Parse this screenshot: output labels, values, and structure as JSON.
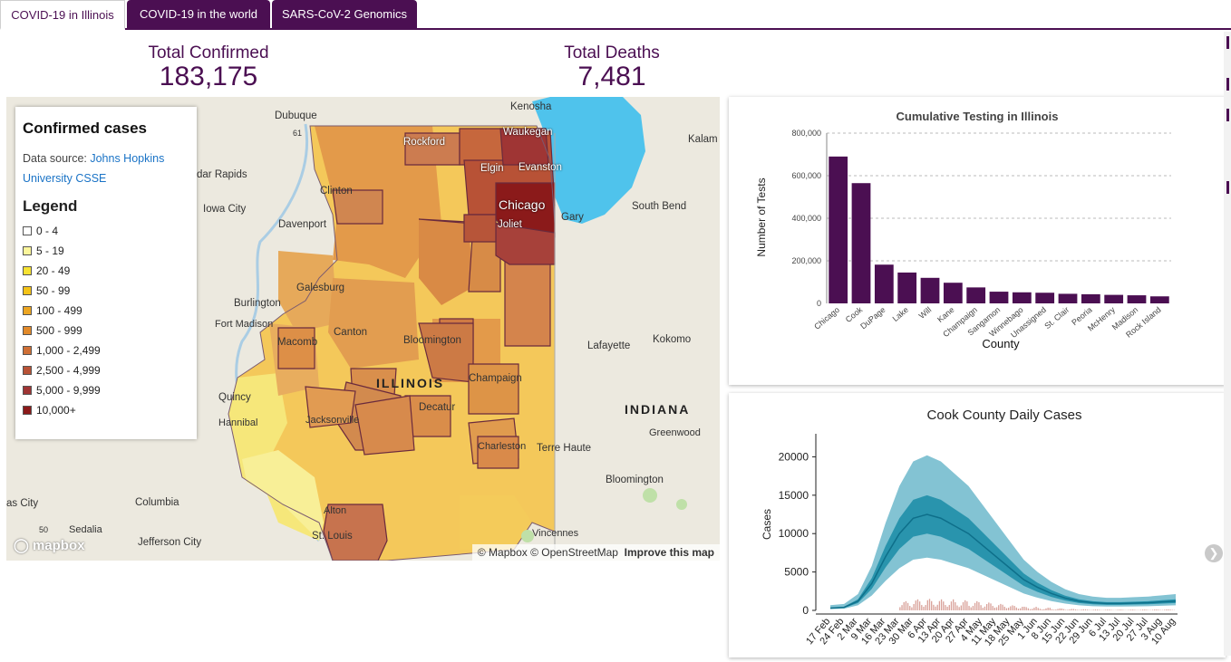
{
  "tabs": [
    {
      "label": "COVID-19 in Illinois",
      "active": true
    },
    {
      "label": "COVID-19 in the world",
      "active": false
    },
    {
      "label": "SARS-CoV-2 Genomics",
      "active": false
    }
  ],
  "totals": {
    "confirmed_label": "Total Confirmed",
    "confirmed_value": "183,175",
    "deaths_label": "Total Deaths",
    "deaths_value": "7,481"
  },
  "map": {
    "legend_title": "Confirmed cases",
    "source_prefix": "Data source: ",
    "source_link": "Johns Hopkins University CSSE",
    "legend_heading": "Legend",
    "legend_items": [
      {
        "label": "0 - 4",
        "color": "#ffffff"
      },
      {
        "label": "5 - 19",
        "color": "#fbf59b"
      },
      {
        "label": "20 - 49",
        "color": "#f7e233"
      },
      {
        "label": "50 - 99",
        "color": "#f4c318"
      },
      {
        "label": "100 - 499",
        "color": "#eda622"
      },
      {
        "label": "500 - 999",
        "color": "#e28a2a"
      },
      {
        "label": "1,000 - 2,499",
        "color": "#cf6f35"
      },
      {
        "label": "2,500 - 4,999",
        "color": "#b85236"
      },
      {
        "label": "5,000 - 9,999",
        "color": "#9f3534"
      },
      {
        "label": "10,000+",
        "color": "#8b1a1a"
      }
    ],
    "state_label": "ILLINOIS",
    "state_label_2": "INDIANA",
    "places": [
      "Dubuque",
      "Kenosha",
      "Kalam",
      "Rockford",
      "Waukegan",
      "Elgin",
      "Evanston",
      "dar Rapids",
      "Clinton",
      "Chicago",
      "Iowa City",
      "Davenport",
      "Joliet",
      "Gary",
      "South Bend",
      "Galesburg",
      "Burlington",
      "Fort Madison",
      "Canton",
      "Bloomington",
      "Lafayette",
      "Kokomo",
      "Macomb",
      "Champaign",
      "Quincy",
      "Decatur",
      "Hannibal",
      "Jacksonville",
      "Greenwood",
      "Charleston",
      "Terre Haute",
      "as City",
      "Columbia",
      "Bloomington",
      "Alton",
      "Sedalia",
      "St. Louis",
      "Jefferson City",
      "Vincennes"
    ],
    "road_label_1": "61",
    "road_label_2": "50",
    "attribution": "© Mapbox © OpenStreetMap",
    "improve": "Improve this map",
    "logo": "mapbox"
  },
  "chart_data": [
    {
      "type": "bar",
      "title": "Cumulative Testing in Illinois",
      "xlabel": "County",
      "ylabel": "Number of Tests",
      "ylim": [
        0,
        800000
      ],
      "yticks": [
        "0",
        "200,000",
        "400,000",
        "600,000",
        "800,000"
      ],
      "color": "#4b0f52",
      "categories": [
        "Chicago",
        "Cook",
        "DuPage",
        "Lake",
        "Will",
        "Kane",
        "Champaign",
        "Sangamon",
        "Winnebago",
        "Unassigned",
        "St. Clair",
        "Peoria",
        "McHenry",
        "Madison",
        "Rock Island"
      ],
      "values": [
        690000,
        565000,
        182000,
        145000,
        120000,
        97000,
        75000,
        55000,
        52000,
        50000,
        45000,
        43000,
        40000,
        38000,
        33000
      ]
    },
    {
      "type": "line",
      "title": "Cook County Daily Cases",
      "xlabel": "",
      "ylabel": "Cases",
      "ylim": [
        0,
        23000
      ],
      "yticks": [
        "0",
        "5000",
        "10000",
        "15000",
        "20000"
      ],
      "color": "#1a8ca6",
      "band_color": "#5aafc4",
      "bar_color": "#d9a29a",
      "x": [
        "17 Feb",
        "24 Feb",
        "2 Mar",
        "9 Mar",
        "16 Mar",
        "23 Mar",
        "30 Mar",
        "6 Apr",
        "13 Apr",
        "20 Apr",
        "27 Apr",
        "4 May",
        "11 May",
        "18 May",
        "25 May",
        "1 Jun",
        "8 Jun",
        "15 Jun",
        "22 Jun",
        "29 Jun",
        "6 Jul",
        "13 Jul",
        "20 Jul",
        "27 Jul",
        "3 Aug",
        "10 Aug"
      ],
      "series": [
        {
          "values": [
            300,
            400,
            1200,
            3500,
            7000,
            10000,
            12000,
            12500,
            12000,
            11000,
            10000,
            8500,
            7000,
            5500,
            4000,
            3000,
            2200,
            1600,
            1200,
            1000,
            900,
            900,
            950,
            1000,
            1100,
            1200
          ]
        }
      ]
    }
  ]
}
